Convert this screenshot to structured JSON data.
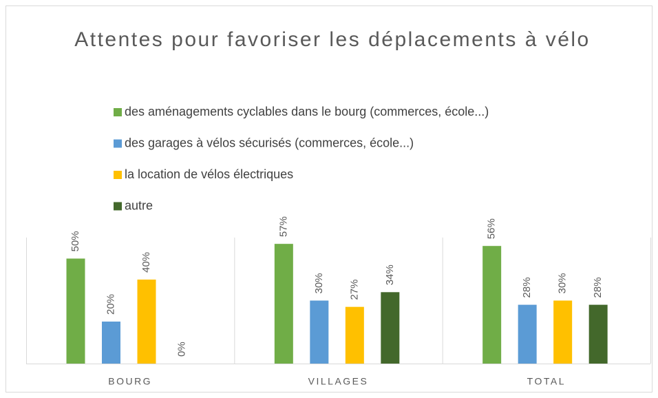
{
  "chart_data": {
    "type": "bar",
    "title": "Attentes pour favoriser les déplacements à vélo",
    "categories": [
      "BOURG",
      "VILLAGES",
      "TOTAL"
    ],
    "series": [
      {
        "name": "des aménagements cyclables dans le bourg (commerces, école...)",
        "color": "#70ad47",
        "values": [
          50,
          57,
          56
        ],
        "value_labels": [
          "50%",
          "57%",
          "56%"
        ]
      },
      {
        "name": "des garages à vélos sécurisés (commerces, école...)",
        "color": "#5b9bd5",
        "values": [
          20,
          30,
          28
        ],
        "value_labels": [
          "20%",
          "30%",
          "28%"
        ]
      },
      {
        "name": "la location de vélos électriques",
        "color": "#ffc000",
        "values": [
          40,
          27,
          30
        ],
        "value_labels": [
          "40%",
          "27%",
          "30%"
        ]
      },
      {
        "name": "autre",
        "color": "#43682b",
        "values": [
          0,
          34,
          28
        ],
        "value_labels": [
          "0%",
          "34%",
          "28%"
        ]
      }
    ],
    "ylim": [
      0,
      60
    ],
    "legend": "top"
  }
}
